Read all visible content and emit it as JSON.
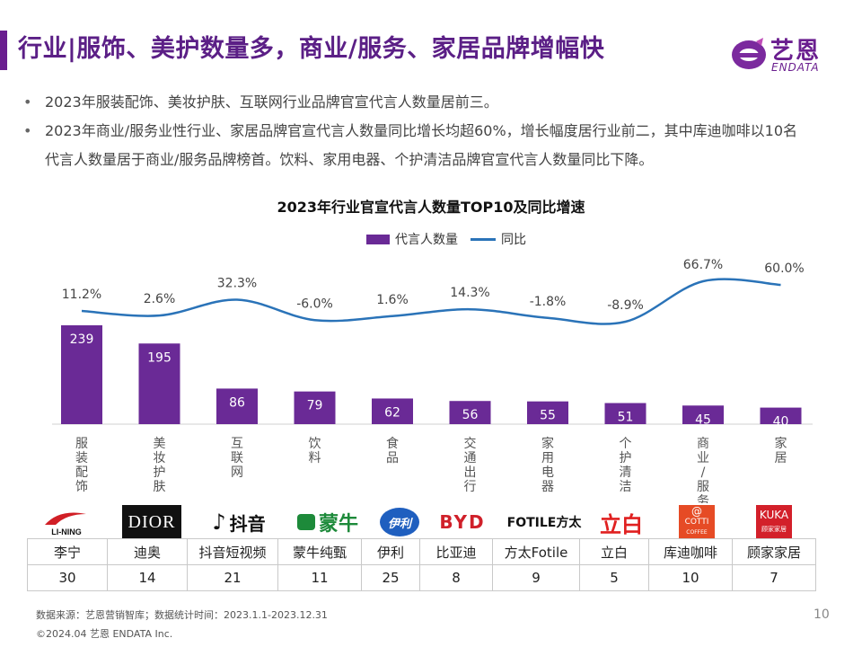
{
  "header": {
    "title": "行业|服饰、美护数量多，商业/服务、家居品牌增幅快",
    "logo_cn": "艺恩",
    "logo_en": "ENDATA"
  },
  "bullets": [
    "2023年服装配饰、美妆护肤、互联网行业品牌官宣代言人数量居前三。",
    "2023年商业/服务业性行业、家居品牌官宣代言人数量同比增长均超60%，增长幅度居行业前二，其中库迪咖啡以10名代言人数量居于商业/服务品牌榜首。饮料、家用电器、个护清洁品牌官宣代言人数量同比下降。"
  ],
  "chart_data": {
    "type": "bar",
    "title": "2023年行业官宣代言人数量TOP10及同比增速",
    "categories": [
      "服装配饰",
      "美妆护肤",
      "互联网",
      "饮料",
      "食品",
      "交通出行",
      "家用电器",
      "个护清洁",
      "商业/服务",
      "家居"
    ],
    "series": [
      {
        "name": "代言人数量",
        "type": "bar",
        "values": [
          239,
          195,
          86,
          79,
          62,
          56,
          55,
          51,
          45,
          40
        ]
      },
      {
        "name": "同比",
        "type": "line",
        "values": [
          11.2,
          2.6,
          32.3,
          -6.0,
          1.6,
          14.3,
          -1.8,
          -8.9,
          66.7,
          60.0
        ]
      }
    ],
    "value_labels": [
      "239",
      "195",
      "86",
      "79",
      "62",
      "56",
      "55",
      "51",
      "45",
      "40"
    ],
    "growth_labels": [
      "11.2%",
      "2.6%",
      "32.3%",
      "-6.0%",
      "1.6%",
      "14.3%",
      "-1.8%",
      "-8.9%",
      "66.7%",
      "60.0%"
    ],
    "legend": "top-center",
    "grid": false,
    "colors": {
      "bar": "#6a2a96",
      "line": "#2a73b8"
    }
  },
  "brands": {
    "names": [
      "李宁",
      "迪奥",
      "抖音短视频",
      "蒙牛纯甄",
      "伊利",
      "比亚迪",
      "方太Fotile",
      "立白",
      "库迪咖啡",
      "顾家家居"
    ],
    "counts": [
      "30",
      "14",
      "21",
      "11",
      "25",
      "8",
      "9",
      "5",
      "10",
      "7"
    ],
    "logos": [
      "LI-NING",
      "DIOR",
      "抖音",
      "蒙牛",
      "伊利",
      "BYD",
      "FOTILE方太",
      "立白",
      "COTTI",
      "KUKA"
    ],
    "logo_sub": {
      "cotti": "COFFEE",
      "kuka": "顾家家居"
    }
  },
  "footer": {
    "source": "数据来源：艺恩营销智库；数据统计时间：2023.1.1-2023.12.31",
    "copyright": "©2024.04 艺恩 ENDATA Inc.",
    "page_number": "10"
  }
}
